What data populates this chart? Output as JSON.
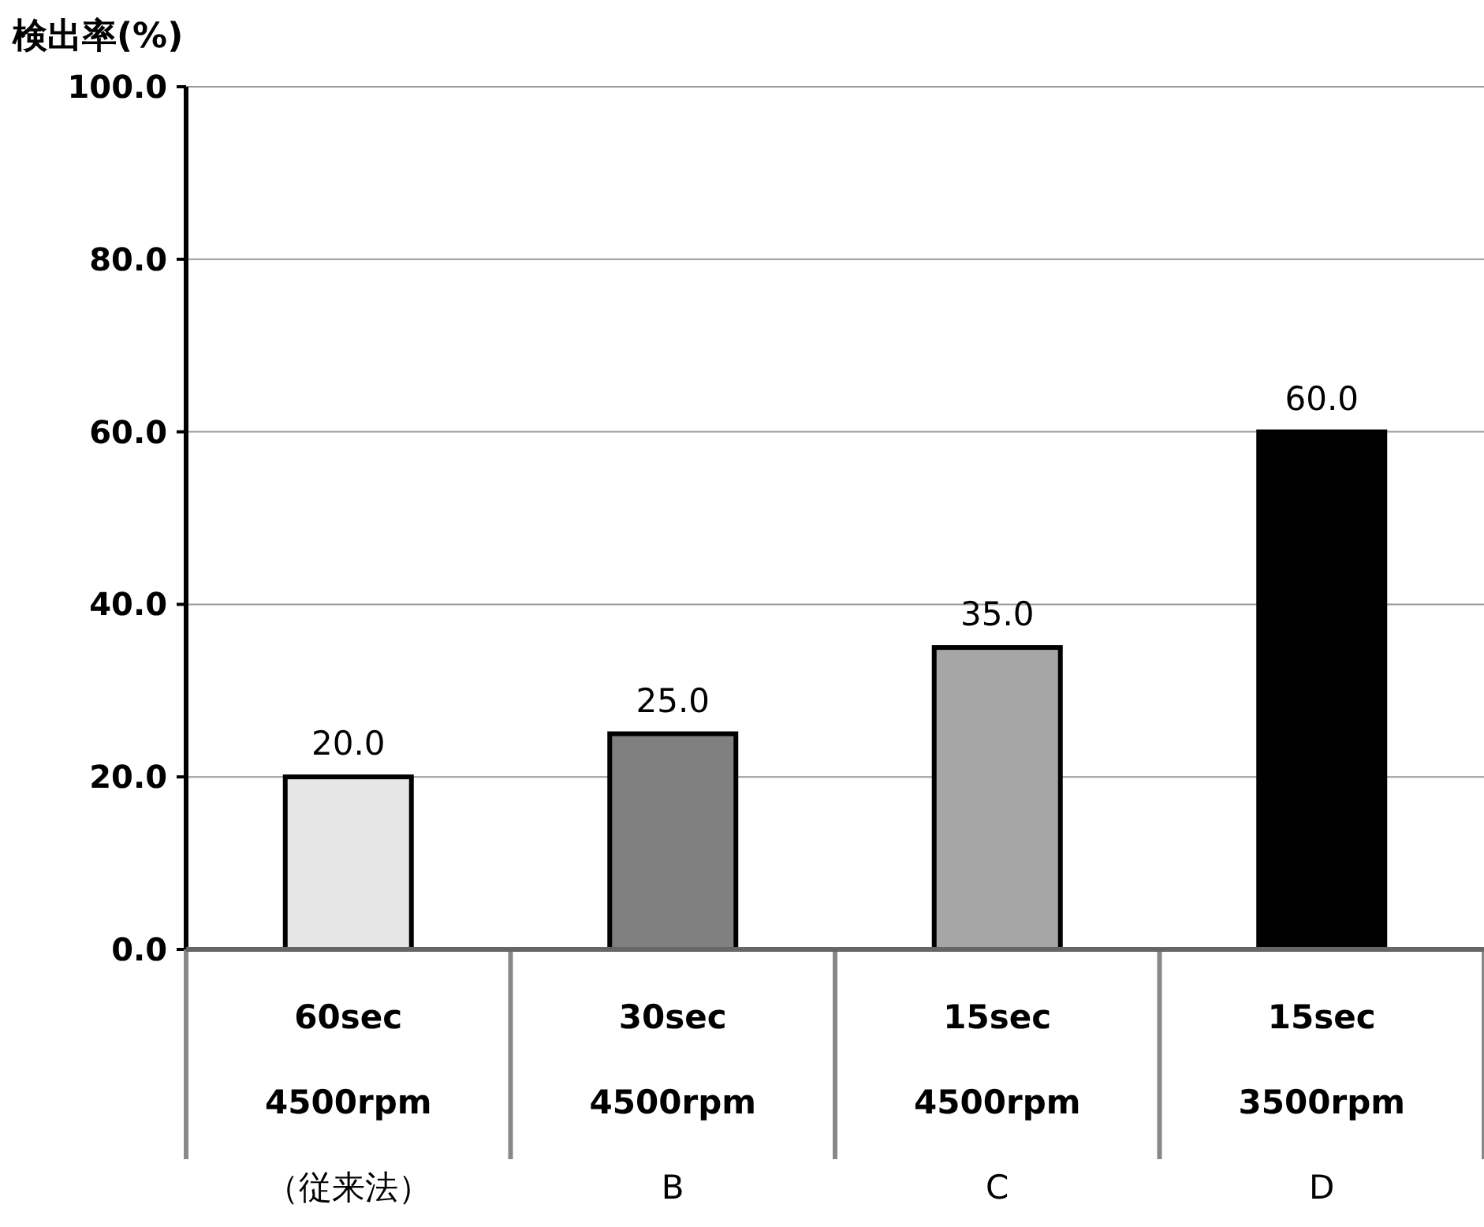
{
  "chart_data": {
    "type": "bar",
    "ylabel": "検出率(%)",
    "categories": [
      "60sec\n4500rpm\n（従来法）",
      "30sec\n4500rpm\nB",
      "15sec\n4500rpm\nC",
      "15sec\n3500rpm\nD"
    ],
    "values": [
      20.0,
      25.0,
      35.0,
      60.0
    ],
    "colors": [
      "#e6e6e6",
      "#808080",
      "#a6a6a6",
      "#000000"
    ],
    "ylim": [
      0,
      100
    ],
    "yticks": [
      {
        "value": 0,
        "label": "0.0"
      },
      {
        "value": 20,
        "label": "20.0"
      },
      {
        "value": 40,
        "label": "40.0"
      },
      {
        "value": 60,
        "label": "60.0"
      },
      {
        "value": 80,
        "label": "80.0"
      },
      {
        "value": 100,
        "label": "100.0"
      }
    ],
    "value_labels": [
      "20.0",
      "25.0",
      "35.0",
      "60.0"
    ],
    "grid": "y"
  }
}
